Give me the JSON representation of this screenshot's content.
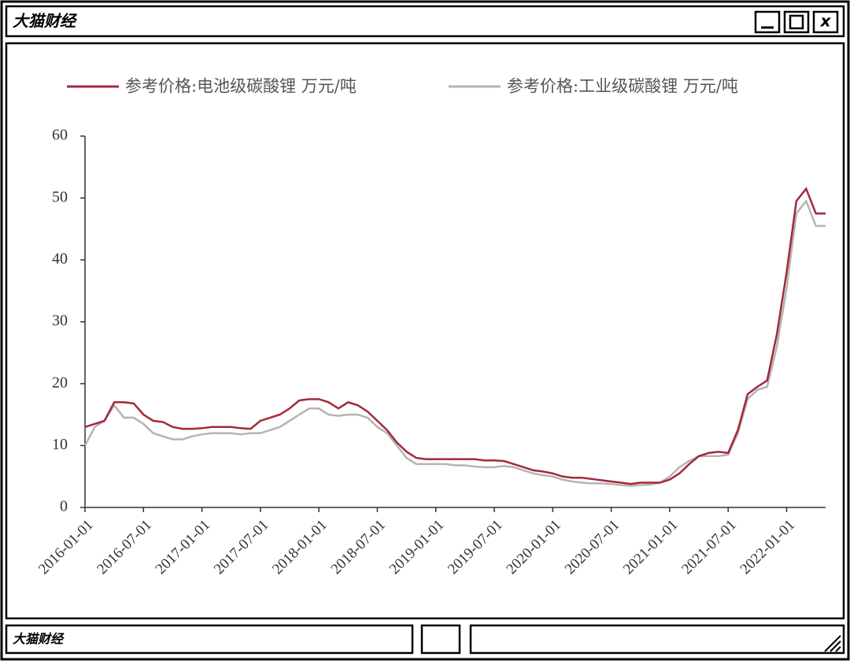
{
  "window": {
    "title": "大猫财经",
    "close_label": "x",
    "footer": "大猫财经"
  },
  "chart_data": {
    "type": "line",
    "x": [
      "2016-01-01",
      "2016-02-01",
      "2016-03-01",
      "2016-04-01",
      "2016-05-01",
      "2016-06-01",
      "2016-07-01",
      "2016-08-01",
      "2016-09-01",
      "2016-10-01",
      "2016-11-01",
      "2016-12-01",
      "2017-01-01",
      "2017-02-01",
      "2017-03-01",
      "2017-04-01",
      "2017-05-01",
      "2017-06-01",
      "2017-07-01",
      "2017-08-01",
      "2017-09-01",
      "2017-10-01",
      "2017-11-01",
      "2017-12-01",
      "2018-01-01",
      "2018-02-01",
      "2018-03-01",
      "2018-04-01",
      "2018-05-01",
      "2018-06-01",
      "2018-07-01",
      "2018-08-01",
      "2018-09-01",
      "2018-10-01",
      "2018-11-01",
      "2018-12-01",
      "2019-01-01",
      "2019-02-01",
      "2019-03-01",
      "2019-04-01",
      "2019-05-01",
      "2019-06-01",
      "2019-07-01",
      "2019-08-01",
      "2019-09-01",
      "2019-10-01",
      "2019-11-01",
      "2019-12-01",
      "2020-01-01",
      "2020-02-01",
      "2020-03-01",
      "2020-04-01",
      "2020-05-01",
      "2020-06-01",
      "2020-07-01",
      "2020-08-01",
      "2020-09-01",
      "2020-10-01",
      "2020-11-01",
      "2020-12-01",
      "2021-01-01",
      "2021-02-01",
      "2021-03-01",
      "2021-04-01",
      "2021-05-01",
      "2021-06-01",
      "2021-07-01",
      "2021-08-01",
      "2021-09-01",
      "2021-10-01",
      "2021-11-01",
      "2021-12-01",
      "2022-01-01",
      "2022-02-01",
      "2022-03-01",
      "2022-04-01",
      "2022-05-01"
    ],
    "series": [
      {
        "name": "参考价格:电池级碳酸锂 万元/吨",
        "color": "#a3283c",
        "values": [
          13,
          13.5,
          14,
          17,
          17,
          16.8,
          15,
          14,
          13.8,
          13,
          12.7,
          12.7,
          12.8,
          13,
          13,
          13,
          12.8,
          12.7,
          14,
          14.5,
          15,
          16,
          17.3,
          17.5,
          17.5,
          17,
          16,
          17,
          16.5,
          15.5,
          14,
          12.5,
          10.5,
          9,
          8,
          7.8,
          7.8,
          7.8,
          7.8,
          7.8,
          7.8,
          7.6,
          7.6,
          7.5,
          7,
          6.5,
          6,
          5.8,
          5.5,
          5,
          4.8,
          4.8,
          4.6,
          4.4,
          4.2,
          4,
          3.8,
          4,
          4,
          4,
          4.5,
          5.5,
          7,
          8.3,
          8.8,
          9,
          8.8,
          12.5,
          18.3,
          19.5,
          20.5,
          28,
          38,
          49.5,
          51.5,
          47.5,
          47.5
        ]
      },
      {
        "name": "参考价格:工业级碳酸锂 万元/吨",
        "color": "#b4b4b4",
        "values": [
          10,
          13,
          14,
          16.5,
          14.5,
          14.5,
          13.5,
          12,
          11.5,
          11,
          11,
          11.5,
          11.8,
          12,
          12,
          12,
          11.8,
          12,
          12,
          12.5,
          13,
          14,
          15,
          16,
          16,
          15,
          14.8,
          15,
          15,
          14.5,
          13,
          12,
          10,
          8,
          7,
          7,
          7,
          7,
          6.8,
          6.8,
          6.6,
          6.5,
          6.5,
          6.7,
          6.5,
          6,
          5.5,
          5.2,
          5,
          4.5,
          4.2,
          4,
          3.9,
          3.9,
          3.8,
          3.6,
          3.5,
          3.6,
          3.7,
          4,
          5,
          6.5,
          7.5,
          8.3,
          8.3,
          8.3,
          8.5,
          12,
          17.5,
          19,
          19.5,
          26,
          35.5,
          47.5,
          49.5,
          45.5,
          45.5
        ]
      }
    ],
    "xlim": [
      "2016-01-01",
      "2022-05-01"
    ],
    "xticks": [
      "2016-01-01",
      "2016-07-01",
      "2017-01-01",
      "2017-07-01",
      "2018-01-01",
      "2018-07-01",
      "2019-01-01",
      "2019-07-01",
      "2020-01-01",
      "2020-07-01",
      "2021-01-01",
      "2021-07-01",
      "2022-01-01"
    ],
    "ylim": [
      0,
      60
    ],
    "yticks": [
      0,
      10,
      20,
      30,
      40,
      50,
      60
    ],
    "grid": false,
    "legend": "top"
  }
}
